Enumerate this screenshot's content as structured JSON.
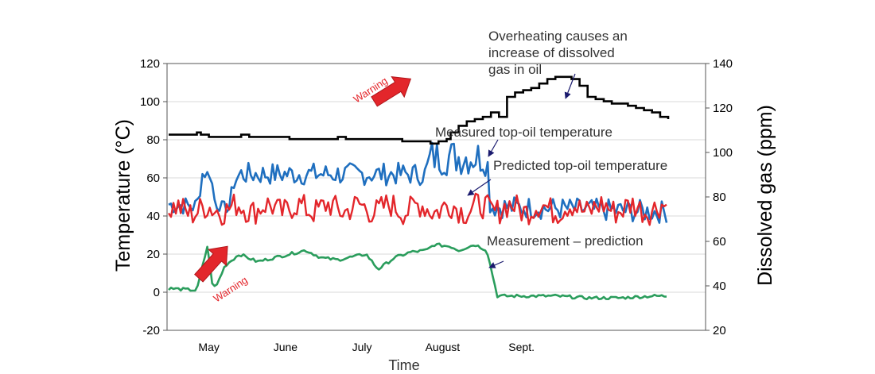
{
  "chart_data": {
    "type": "line",
    "xlabel": "Time",
    "ylabel": "Temperature (°C)",
    "y2label": "Dissolved gas (ppm)",
    "ylim": [
      -20,
      120
    ],
    "y2lim": [
      20,
      140
    ],
    "yticks": [
      "120",
      "100",
      "80",
      "60",
      "40",
      "20",
      "0",
      "-20"
    ],
    "y2ticks": [
      "140",
      "120",
      "100",
      "80",
      "60",
      "40",
      "20"
    ],
    "months": [
      "May",
      "June",
      "July",
      "August",
      "Sept."
    ],
    "grid": true,
    "annotations": {
      "gas": [
        "Overheating causes an",
        "increase of dissolved",
        "gas in oil"
      ],
      "measured": "Measured top-oil temperature",
      "predicted": "Predicted top-oil temperature",
      "residual": "Measurement – prediction",
      "warning_top": "Warning",
      "warning_bottom": "Warning"
    },
    "colors": {
      "gas": "#000000",
      "measured": "#1f6fbf",
      "predicted": "#e3262b",
      "residual": "#2a9d5c",
      "arrow": "#e3262b",
      "pointer": "#1a1a6e"
    },
    "series_gas_ppm": {
      "t": [
        0,
        5,
        10,
        20,
        30,
        35,
        40,
        50,
        60,
        70,
        80,
        90,
        100,
        110,
        120,
        130,
        140,
        150,
        160,
        170,
        180,
        190,
        200,
        210,
        215,
        220,
        230,
        240,
        250,
        260,
        270,
        280,
        290,
        300,
        310,
        320,
        325,
        330,
        335,
        340,
        345,
        350,
        360,
        370,
        380,
        390,
        395,
        400,
        410,
        420,
        430,
        440,
        450,
        460,
        470,
        480,
        490,
        500,
        510,
        520,
        530,
        540,
        550,
        560,
        570,
        580,
        590,
        600,
        610,
        620
      ],
      "v": [
        108,
        108,
        108,
        108,
        108,
        109,
        108,
        107,
        107,
        107,
        107,
        108,
        107,
        107,
        107,
        107,
        107,
        106,
        106,
        106,
        106,
        106,
        106,
        107,
        107,
        106,
        106,
        106,
        106,
        106,
        106,
        106,
        105,
        105,
        105,
        105,
        104,
        104,
        105,
        105,
        106,
        109,
        112,
        114,
        115,
        116,
        116,
        118,
        116,
        125,
        127,
        128,
        129,
        131,
        133,
        134,
        134,
        133,
        130,
        125,
        124,
        123,
        122,
        122,
        121,
        120,
        119,
        118,
        116,
        115
      ]
    }
  }
}
